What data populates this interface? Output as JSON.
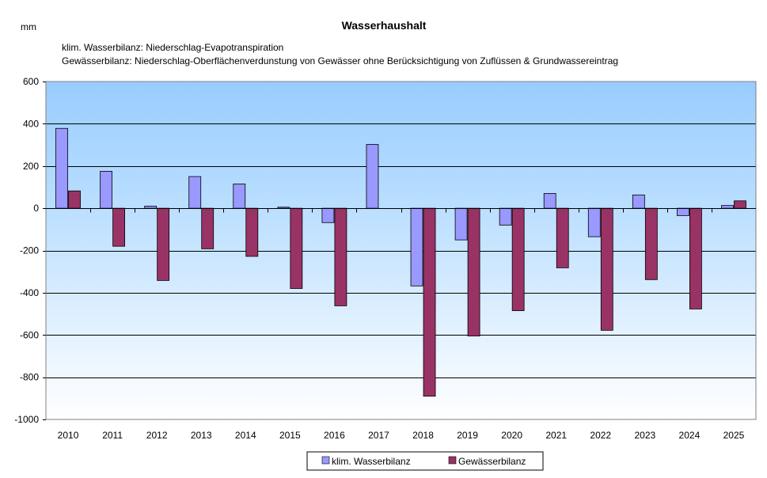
{
  "chart_data": {
    "type": "bar",
    "title": "Wasserhaushalt",
    "subtitle_lines": [
      "klim. Wasserbilanz: Niederschlag-Evapotranspiration",
      "Gewässerbilanz: Niederschlag-Oberflächenverdunstung von Gewässer ohne Berücksichtigung von Zuflüssen & Grundwassereintrag"
    ],
    "ylabel": "mm",
    "xlabel": "",
    "categories": [
      "2010",
      "2011",
      "2012",
      "2013",
      "2014",
      "2015",
      "2016",
      "2017",
      "2018",
      "2019",
      "2020",
      "2021",
      "2022",
      "2023",
      "2024",
      "2025"
    ],
    "series": [
      {
        "name": "klim. Wasserbilanz",
        "color": "#9999ff",
        "values": [
          378,
          175,
          10,
          150,
          115,
          5,
          -68,
          302,
          -368,
          -150,
          -80,
          70,
          -135,
          63,
          -35,
          13
        ]
      },
      {
        "name": "Gewässerbilanz",
        "color": "#993366",
        "values": [
          82,
          -180,
          -342,
          -192,
          -228,
          -380,
          -462,
          0,
          -890,
          -605,
          -485,
          -282,
          -578,
          -338,
          -477,
          35
        ]
      }
    ],
    "ylim": [
      -1000,
      600
    ],
    "yticks": [
      600,
      400,
      200,
      0,
      -200,
      -400,
      -600,
      -800,
      -1000
    ],
    "grid": true,
    "legend_position": "bottom"
  }
}
